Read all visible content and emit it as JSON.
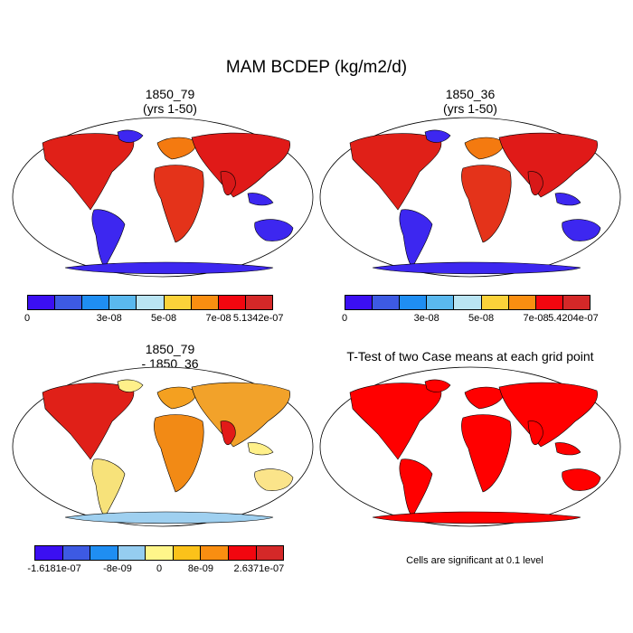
{
  "title": "MAM BCDEP (kg/m2/d)",
  "panels": {
    "top_left": {
      "title1": "1850_79",
      "title2": "(yrs 1-50)"
    },
    "top_right": {
      "title1": "1850_36",
      "title2": "(yrs 1-50)"
    },
    "bottom_left": {
      "title1": "1850_79",
      "title2": "- 1850_36"
    },
    "bottom_right": {
      "title1": "T-Test of two Case means at each grid point"
    }
  },
  "colorbars": {
    "abs_left": {
      "colors": [
        "#3b0ff2",
        "#3d5ae3",
        "#1f8ef2",
        "#5ab8ee",
        "#b9e4f2",
        "#fbd23a",
        "#f98e11",
        "#f2060f",
        "#d42828"
      ],
      "labels": [
        "0",
        "3e-08",
        "5e-08",
        "7e-08",
        "5.1342e-07"
      ]
    },
    "abs_right": {
      "colors": [
        "#3b0ff2",
        "#3d5ae3",
        "#1f8ef2",
        "#5ab8ee",
        "#b9e4f2",
        "#fbd23a",
        "#f98e11",
        "#f2060f",
        "#d42828"
      ],
      "labels": [
        "0",
        "3e-08",
        "5e-08",
        "7e-08",
        "5.4204e-07"
      ]
    },
    "diff": {
      "colors": [
        "#3b0ff2",
        "#3d5ae3",
        "#1f8ef2",
        "#95cdf0",
        "#fff68a",
        "#fbc21a",
        "#f98e11",
        "#f2060f",
        "#d42828"
      ],
      "labels": [
        "-1.6181e-07",
        "-8e-09",
        "0",
        "8e-09",
        "2.6371e-07"
      ]
    }
  },
  "significance_note": "Cells are significant at 0.1 level",
  "significance_color": "#ff0000"
}
